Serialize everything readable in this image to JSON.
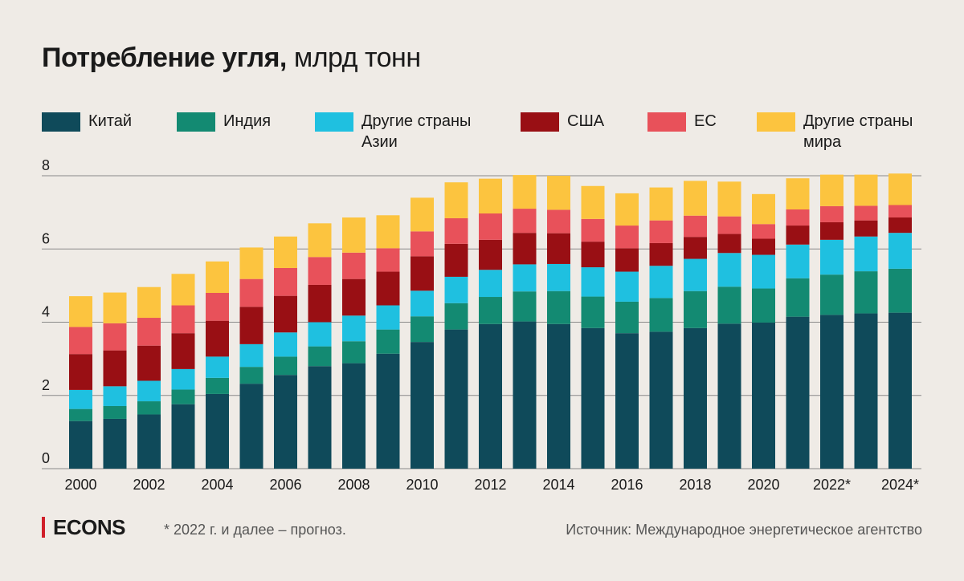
{
  "colors": {
    "china": "#0f4a5a",
    "india": "#138a72",
    "other_asia": "#1fc0e0",
    "usa": "#990f14",
    "eu": "#e8515a",
    "other_world": "#fcc43f",
    "grid": "#8a8a8a",
    "accent": "#d0202a"
  },
  "chart_data": {
    "type": "bar",
    "stacked": true,
    "title": "Потребление угля,",
    "unit": "млрд тонн",
    "xlabel": "",
    "ylabel": "",
    "ylim": [
      0,
      8
    ],
    "yticks": [
      "0",
      "2",
      "4",
      "6",
      "8"
    ],
    "categories": [
      "2000",
      "2001",
      "2002",
      "2003",
      "2004",
      "2005",
      "2006",
      "2007",
      "2008",
      "2009",
      "2010",
      "2011",
      "2012",
      "2013",
      "2014",
      "2015",
      "2016",
      "2017",
      "2018",
      "2019",
      "2020",
      "2021",
      "2022*",
      "2023*",
      "2024*"
    ],
    "xtick_labels": [
      "2000",
      "2002",
      "2004",
      "2006",
      "2008",
      "2010",
      "2012",
      "2014",
      "2016",
      "2018",
      "2020",
      "2022*",
      "2024*"
    ],
    "series": [
      {
        "name": "Китай",
        "color_key": "china",
        "values": [
          1.3,
          1.36,
          1.48,
          1.76,
          2.04,
          2.32,
          2.56,
          2.8,
          2.88,
          3.14,
          3.46,
          3.8,
          3.95,
          4.02,
          3.95,
          3.84,
          3.7,
          3.74,
          3.84,
          3.96,
          3.99,
          4.15,
          4.2,
          4.24,
          4.26
        ]
      },
      {
        "name": "Индия",
        "color_key": "india",
        "values": [
          0.33,
          0.35,
          0.36,
          0.4,
          0.44,
          0.46,
          0.5,
          0.54,
          0.6,
          0.66,
          0.7,
          0.72,
          0.74,
          0.82,
          0.9,
          0.86,
          0.86,
          0.92,
          1.01,
          1.01,
          0.93,
          1.05,
          1.1,
          1.15,
          1.2
        ]
      },
      {
        "name": "Другие страны Азии",
        "color_key": "other_asia",
        "values": [
          0.52,
          0.54,
          0.56,
          0.56,
          0.58,
          0.62,
          0.66,
          0.66,
          0.7,
          0.66,
          0.7,
          0.72,
          0.74,
          0.74,
          0.74,
          0.8,
          0.82,
          0.88,
          0.88,
          0.92,
          0.92,
          0.92,
          0.95,
          0.95,
          0.98
        ]
      },
      {
        "name": "США",
        "color_key": "usa",
        "values": [
          0.98,
          0.98,
          0.96,
          0.98,
          0.98,
          1.02,
          1.0,
          1.02,
          1.0,
          0.92,
          0.94,
          0.9,
          0.82,
          0.86,
          0.84,
          0.7,
          0.64,
          0.62,
          0.6,
          0.52,
          0.44,
          0.52,
          0.48,
          0.44,
          0.42
        ]
      },
      {
        "name": "ЕС",
        "color_key": "eu",
        "values": [
          0.74,
          0.74,
          0.76,
          0.76,
          0.76,
          0.76,
          0.76,
          0.76,
          0.72,
          0.64,
          0.68,
          0.7,
          0.72,
          0.66,
          0.64,
          0.62,
          0.62,
          0.62,
          0.58,
          0.48,
          0.4,
          0.44,
          0.44,
          0.4,
          0.34
        ]
      },
      {
        "name": "Другие страны мира",
        "color_key": "other_world",
        "values": [
          0.84,
          0.84,
          0.84,
          0.86,
          0.86,
          0.86,
          0.86,
          0.92,
          0.96,
          0.9,
          0.92,
          0.98,
          0.95,
          0.92,
          0.93,
          0.9,
          0.88,
          0.9,
          0.95,
          0.95,
          0.82,
          0.85,
          0.86,
          0.85,
          0.86
        ]
      }
    ]
  },
  "legend": [
    {
      "label": "Китай",
      "color_key": "china"
    },
    {
      "label": "Индия",
      "color_key": "india"
    },
    {
      "label": "Другие страны\nАзии",
      "color_key": "other_asia"
    },
    {
      "label": "США",
      "color_key": "usa"
    },
    {
      "label": "ЕС",
      "color_key": "eu"
    },
    {
      "label": "Другие страны\nмира",
      "color_key": "other_world"
    }
  ],
  "footer": {
    "logo": "ECONS",
    "note": "* 2022 г. и далее – прогноз.",
    "source": "Источник: Международное энергетическое агентство"
  }
}
